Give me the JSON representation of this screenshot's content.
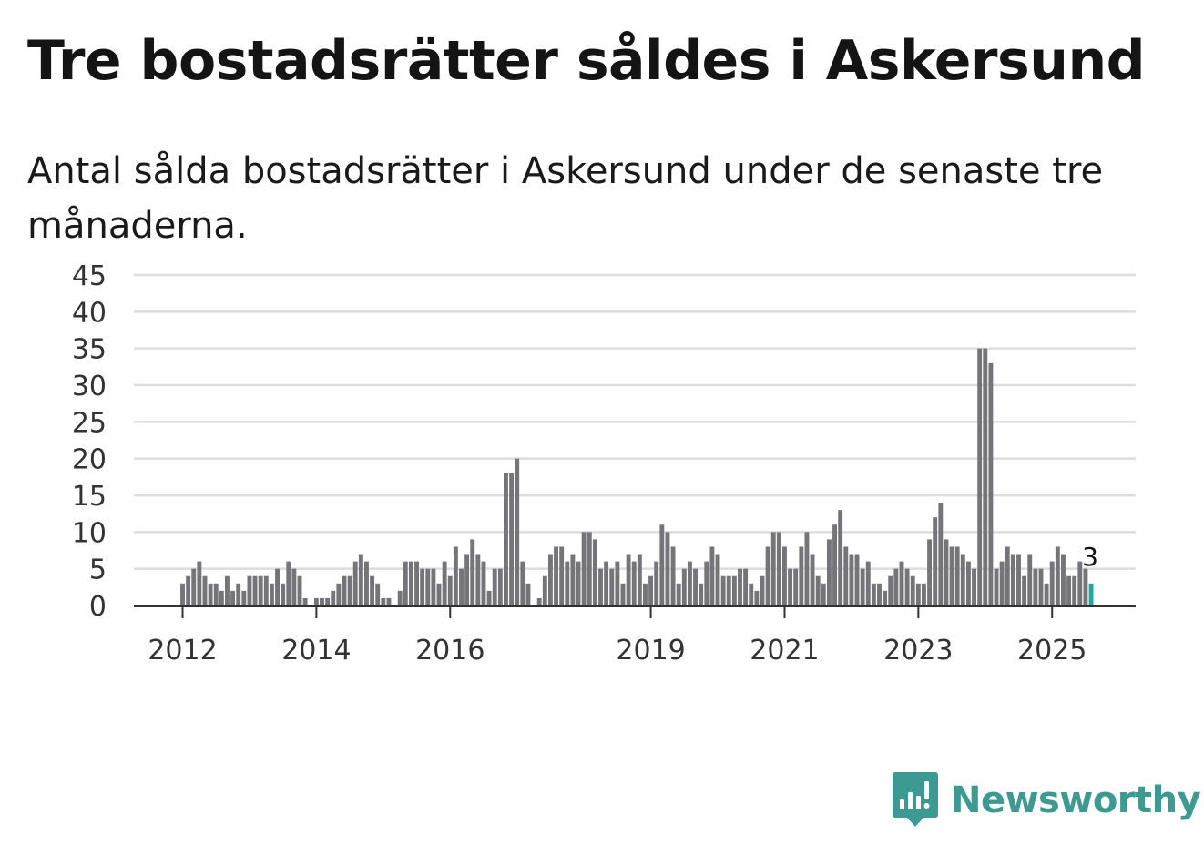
{
  "title": "Tre bostadsrätter såldes i Askersund",
  "subtitle": "Antal sålda bostadsrätter i Askersund under de senaste tre månaderna.",
  "brand": {
    "name": "Newsworthy",
    "color": "#3d9a92",
    "icon": "bar-chart-badge-icon"
  },
  "chart_data": {
    "type": "bar",
    "title": "",
    "xlabel": "",
    "ylabel": "",
    "ylim": [
      0,
      45
    ],
    "yticks": [
      0,
      5,
      10,
      15,
      20,
      25,
      30,
      35,
      40,
      45
    ],
    "grid": true,
    "legend": "none",
    "x_start": "2011-10",
    "xtick_labels": [
      {
        "label": "2012",
        "index": 0
      },
      {
        "label": "2014",
        "index": 24
      },
      {
        "label": "2016",
        "index": 48
      },
      {
        "label": "2019",
        "index": 84
      },
      {
        "label": "2021",
        "index": 108
      },
      {
        "label": "2023",
        "index": 132
      },
      {
        "label": "2025",
        "index": 156
      }
    ],
    "values": [
      3,
      4,
      5,
      6,
      4,
      3,
      3,
      2,
      4,
      2,
      3,
      2,
      4,
      4,
      4,
      4,
      3,
      5,
      3,
      6,
      5,
      4,
      1,
      0,
      1,
      1,
      1,
      2,
      3,
      4,
      4,
      6,
      7,
      6,
      4,
      3,
      1,
      1,
      0,
      2,
      6,
      6,
      6,
      5,
      5,
      5,
      3,
      6,
      4,
      8,
      5,
      7,
      9,
      7,
      6,
      2,
      5,
      5,
      18,
      18,
      20,
      6,
      3,
      0,
      1,
      4,
      7,
      8,
      8,
      6,
      7,
      6,
      10,
      10,
      9,
      5,
      6,
      5,
      6,
      3,
      7,
      6,
      7,
      3,
      4,
      6,
      11,
      10,
      8,
      3,
      5,
      6,
      5,
      3,
      6,
      8,
      7,
      4,
      4,
      4,
      5,
      5,
      3,
      2,
      4,
      8,
      10,
      10,
      8,
      5,
      5,
      8,
      10,
      7,
      4,
      3,
      9,
      11,
      13,
      8,
      7,
      7,
      5,
      6,
      3,
      3,
      2,
      4,
      5,
      6,
      5,
      4,
      3,
      3,
      9,
      12,
      14,
      9,
      8,
      8,
      7,
      6,
      5,
      35,
      35,
      33,
      5,
      6,
      8,
      7,
      7,
      4,
      7,
      5,
      5,
      3,
      6,
      8,
      7,
      4,
      4,
      6,
      5,
      3
    ],
    "bar_color": "#757478",
    "highlight_color": "#27a49b",
    "highlight_last": true,
    "last_value_label": "3",
    "grid_color": "#dddddd",
    "axis_color": "#333333"
  }
}
